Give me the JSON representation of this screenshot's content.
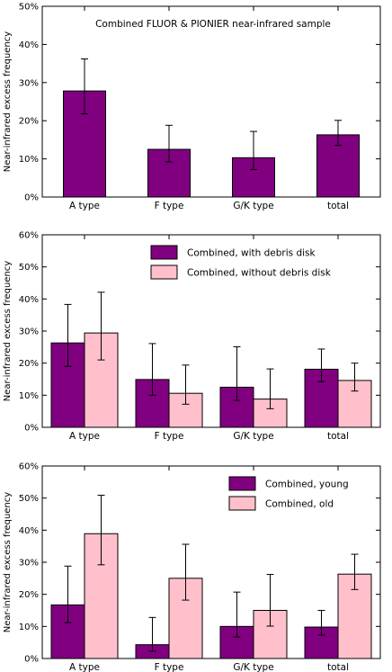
{
  "colors": {
    "purple": "#800080",
    "pink": "#ffc0cb"
  },
  "chart_data": [
    {
      "type": "bar",
      "categories": [
        "A type",
        "F type",
        "G/K type",
        "total"
      ],
      "ylabel": "Near-infrared excess frequency",
      "yticks": [
        "0%",
        "10%",
        "20%",
        "30%",
        "40%",
        "50%"
      ],
      "ylim": [
        0,
        50
      ],
      "annotation": "Combined FLUOR & PIONIER near-infrared sample",
      "legend": null,
      "series": [
        {
          "name": "",
          "color": "#800080",
          "values": [
            27.8,
            12.5,
            10.3,
            16.3
          ],
          "err_low": [
            21.8,
            9.2,
            7.2,
            13.5
          ],
          "err_high": [
            36.2,
            18.8,
            17.2,
            20.1
          ]
        }
      ]
    },
    {
      "type": "bar",
      "categories": [
        "A type",
        "F type",
        "G/K type",
        "total"
      ],
      "ylabel": "Near-infrared excess frequency",
      "yticks": [
        "0%",
        "10%",
        "20%",
        "30%",
        "40%",
        "50%",
        "60%"
      ],
      "ylim": [
        0,
        60
      ],
      "annotation": "",
      "legend": "top-right",
      "series": [
        {
          "name": "Combined, with debris disk",
          "color": "#800080",
          "values": [
            26.3,
            14.9,
            12.5,
            18.1
          ],
          "err_low": [
            19.0,
            10.0,
            8.4,
            14.2
          ],
          "err_high": [
            38.3,
            26.1,
            25.1,
            24.4
          ]
        },
        {
          "name": "Combined, without debris disk",
          "color": "#ffc0cb",
          "values": [
            29.4,
            10.6,
            8.8,
            14.6
          ],
          "err_low": [
            21.0,
            7.2,
            5.8,
            11.3
          ],
          "err_high": [
            42.1,
            19.4,
            18.2,
            20.0
          ]
        }
      ]
    },
    {
      "type": "bar",
      "categories": [
        "A type",
        "F type",
        "G/K type",
        "total"
      ],
      "ylabel": "Near-infrared excess frequency",
      "yticks": [
        "0%",
        "10%",
        "20%",
        "30%",
        "40%",
        "50%",
        "60%"
      ],
      "ylim": [
        0,
        60
      ],
      "annotation": "",
      "legend": "top-right",
      "series": [
        {
          "name": "Combined, young",
          "color": "#800080",
          "values": [
            16.7,
            4.3,
            10.0,
            9.8
          ],
          "err_low": [
            11.2,
            2.3,
            6.7,
            7.3
          ],
          "err_high": [
            28.8,
            12.8,
            20.7,
            15.0
          ]
        },
        {
          "name": "Combined, old",
          "color": "#ffc0cb",
          "values": [
            38.9,
            25.0,
            15.0,
            26.3
          ],
          "err_low": [
            29.2,
            18.2,
            10.1,
            21.5
          ],
          "err_high": [
            50.9,
            35.6,
            26.2,
            32.5
          ]
        }
      ]
    }
  ]
}
